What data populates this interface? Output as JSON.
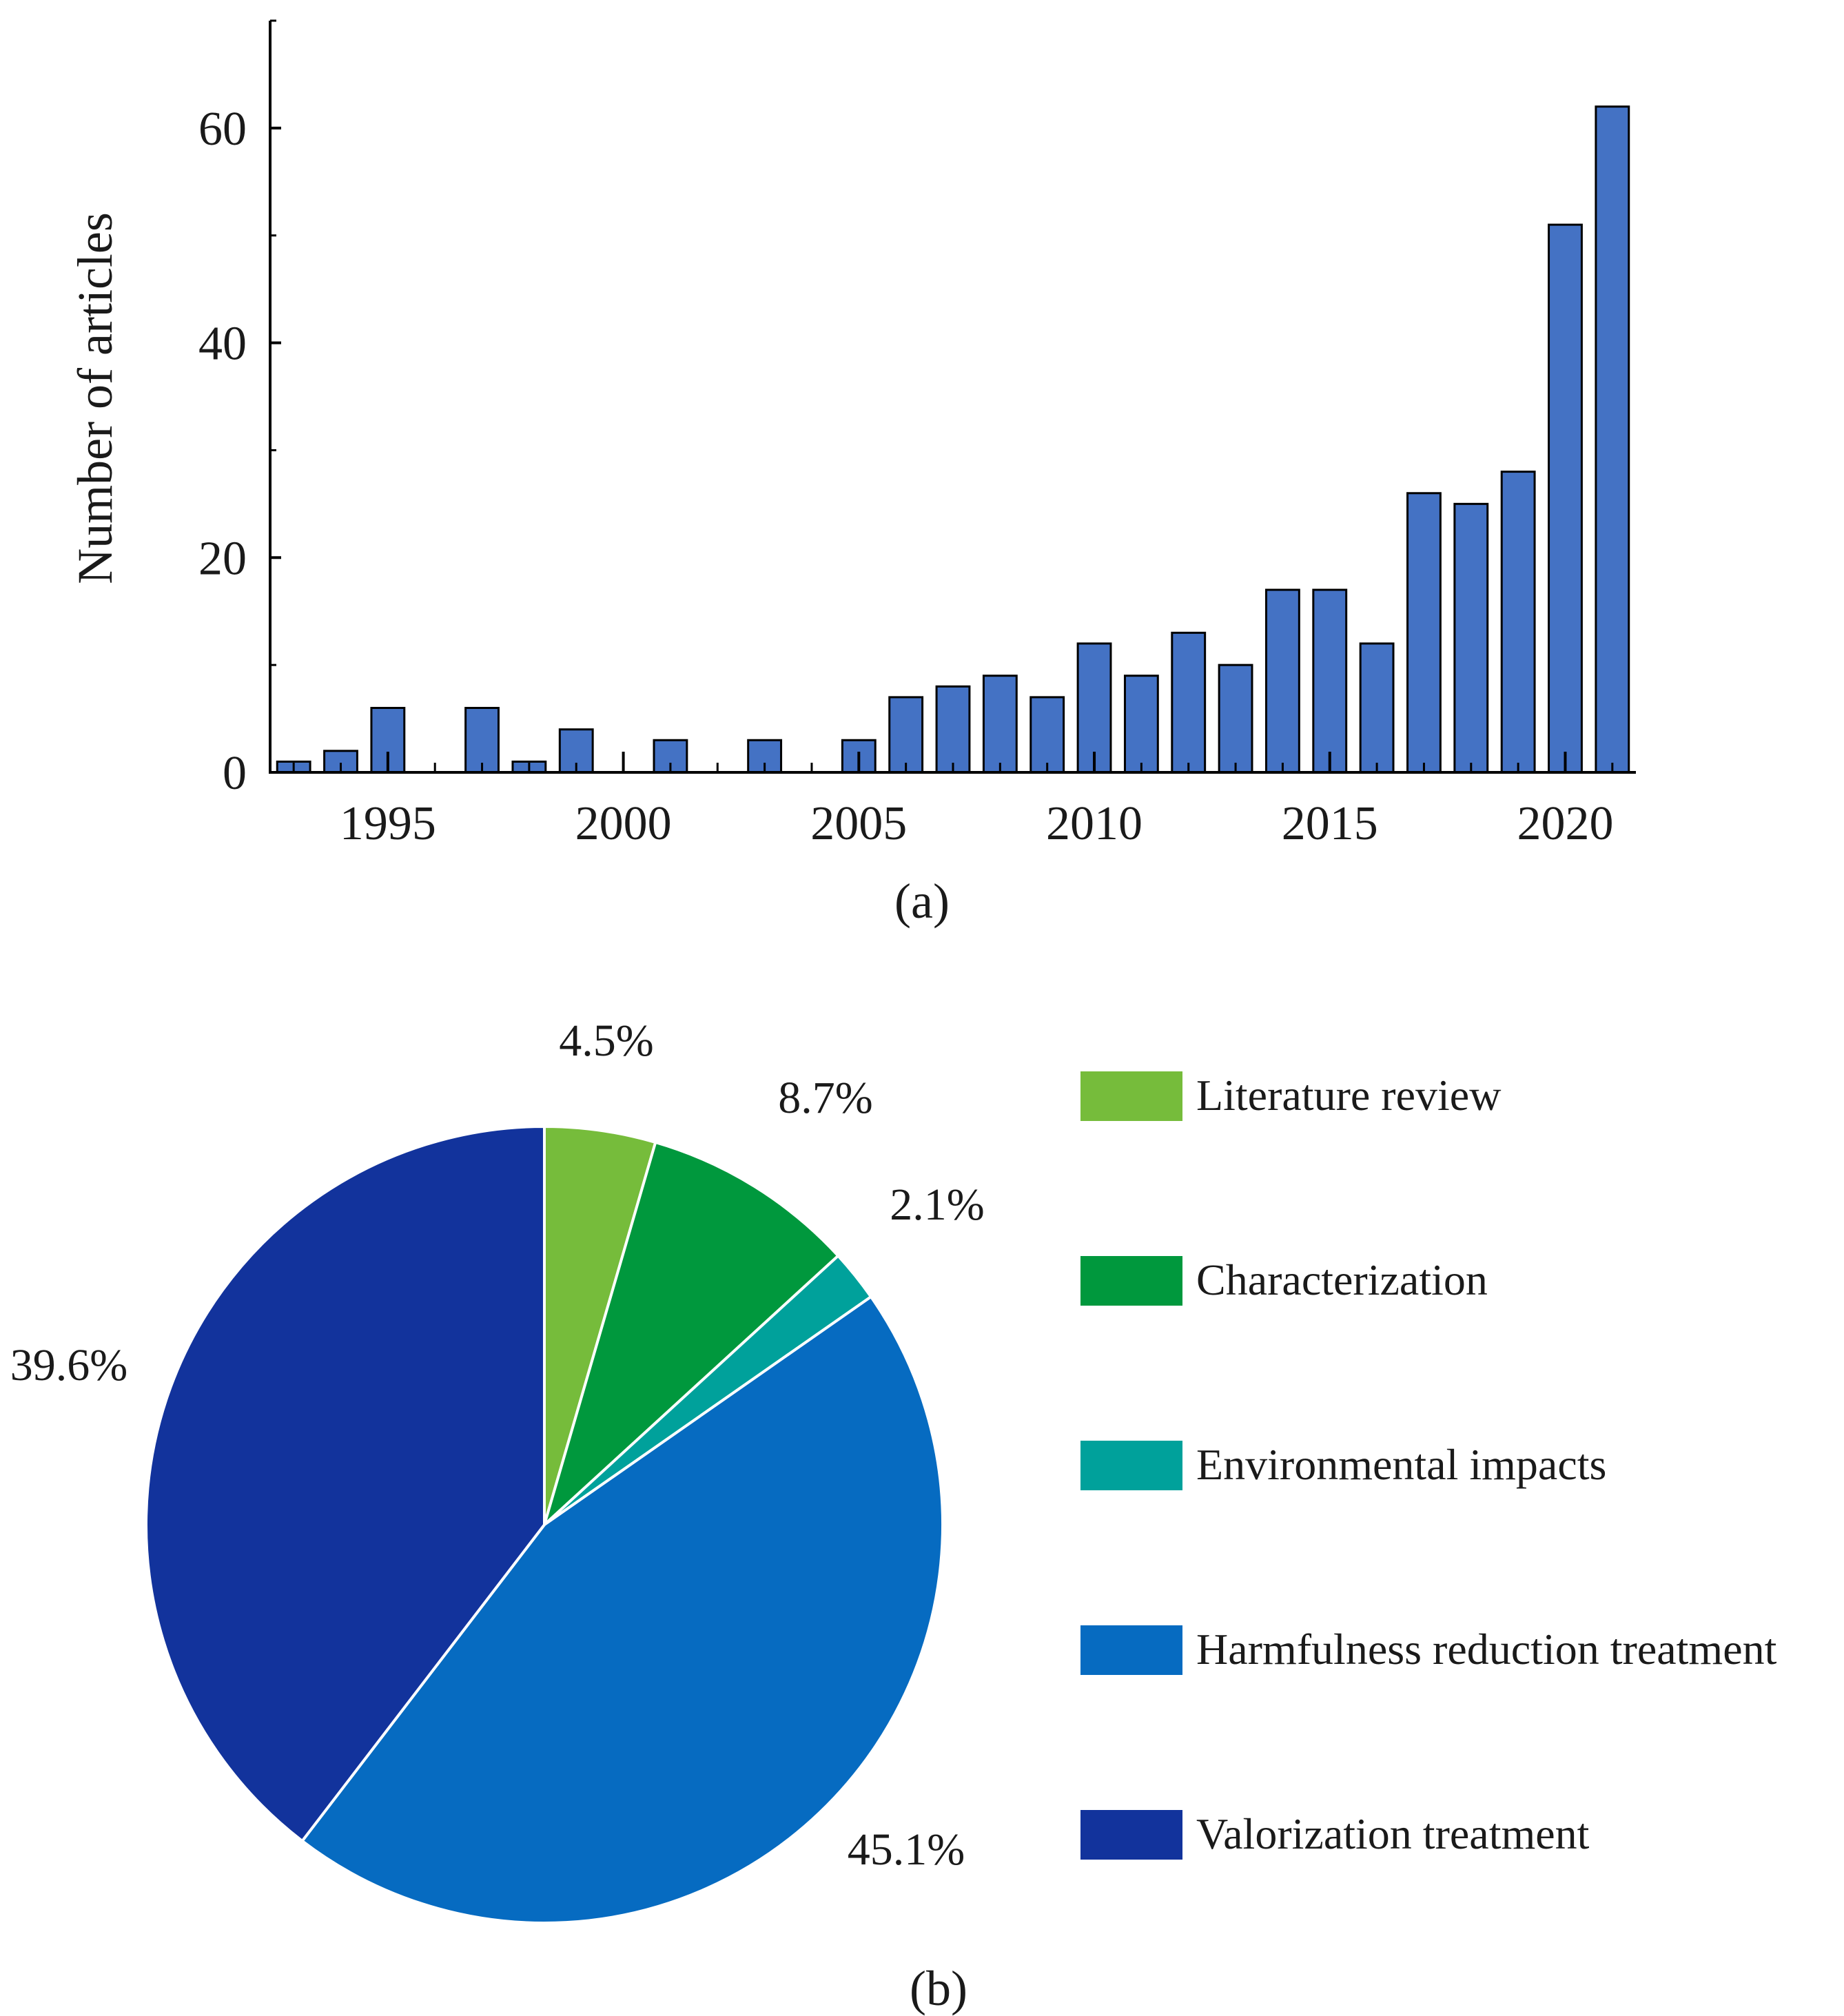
{
  "chart_data": [
    {
      "type": "bar",
      "panel_label": "(a)",
      "title": "",
      "xlabel": "",
      "ylabel": "Number of articles",
      "x": [
        1993,
        1994,
        1995,
        1996,
        1997,
        1998,
        1999,
        2000,
        2001,
        2002,
        2003,
        2004,
        2005,
        2006,
        2007,
        2008,
        2009,
        2010,
        2011,
        2012,
        2013,
        2014,
        2015,
        2016,
        2017,
        2018,
        2019,
        2020,
        2021
      ],
      "values": [
        1,
        2,
        6,
        0,
        6,
        1,
        4,
        0,
        3,
        0,
        3,
        0,
        3,
        7,
        8,
        9,
        7,
        12,
        9,
        13,
        10,
        17,
        17,
        12,
        26,
        25,
        28,
        51,
        62
      ],
      "xlim": [
        1992.5,
        2021.5
      ],
      "ylim": [
        0,
        70
      ],
      "xticks": [
        1995,
        2000,
        2005,
        2010,
        2015,
        2020
      ],
      "xtick_labels": [
        "1995",
        "2000",
        "2005",
        "2010",
        "2015",
        "2020"
      ],
      "yticks": [
        0,
        20,
        40,
        60
      ],
      "ytick_labels": [
        "0",
        "20",
        "40",
        "60"
      ],
      "bar_color": "#4472c4",
      "grid": false,
      "legend": "none"
    },
    {
      "type": "pie",
      "panel_label": "(b)",
      "title": "",
      "slices": [
        {
          "name": "Literature review",
          "value": 4.5,
          "label": "4.5%",
          "color": "#76bc3b"
        },
        {
          "name": "Characterization",
          "value": 8.7,
          "label": "8.7%",
          "color": "#00983d"
        },
        {
          "name": "Environmental impacts",
          "value": 2.1,
          "label": "2.1%",
          "color": "#00a19b"
        },
        {
          "name": "Harmfulness reduction treatment",
          "value": 45.1,
          "label": "45.1%",
          "color": "#066bc1"
        },
        {
          "name": "Valorization treatment",
          "value": 39.6,
          "label": "39.6%",
          "color": "#12339c"
        }
      ],
      "start_angle": "12 o'clock",
      "direction": "clockwise",
      "legend": "right"
    }
  ]
}
